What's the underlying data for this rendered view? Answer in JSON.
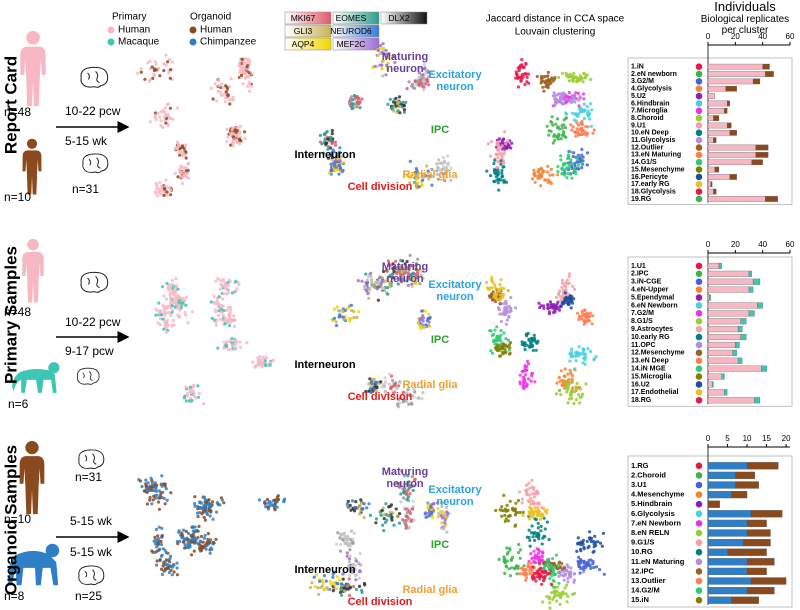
{
  "row_titles": [
    "Report Card",
    "Primary Samples",
    "Organoid Samples"
  ],
  "legend": {
    "primary": "Primary",
    "organoid": "Organoid"
  },
  "genes": [
    "MKI67",
    "EOMES",
    "DLX2",
    "GLI3",
    "NEUROD6",
    "AQP4",
    "MEF2C"
  ],
  "clustering_header": [
    "Jaccard distance in CCA space",
    "Louvain clustering"
  ],
  "sample_labels": [
    [
      "n=48",
      "10-22 pcw",
      "5-15 wk",
      "n=10",
      "n=31"
    ],
    [
      "n=48",
      "10-22 pcw",
      "9-17 pcw",
      "n=6"
    ],
    [
      "n=31",
      "n=10",
      "5-15 wk",
      "5-15 wk",
      "n=8",
      "n=25"
    ]
  ],
  "cell_types": [
    [
      "Maturing neuron",
      "Excitatory neuron",
      "IPC",
      "Interneuron",
      "Radial glia",
      "Cell division"
    ],
    [
      "Maturing neuron",
      "Excitatory neuron",
      "IPC",
      "Interneuron",
      "Radial glia",
      "Cell division"
    ],
    [
      "Maturing neuron",
      "Excitatory neuron",
      "IPC",
      "Interneuron",
      "Radial glia",
      "Cell division"
    ]
  ],
  "chart_data": [
    {
      "type": "bar",
      "title": "Individuals",
      "subtitle": "Biological replicates per cluster",
      "categories": [
        "1.iN",
        "2.eN newborn",
        "3.G2/M",
        "4.Glycolysis",
        "5.U2",
        "6.Hindbrain",
        "7.Microglia",
        "8.Choroid",
        "9.U1",
        "10.eN Deep",
        "11.Glycolysis",
        "12.Outlier",
        "13.eN Maturing",
        "14.G1/S",
        "15.Mesenchyme",
        "16.Pericyte",
        "17.early RG",
        "18.Glycolysis",
        "19.RG"
      ],
      "series": [
        {
          "color": "#f7b8c4",
          "values": [
            40,
            42,
            33,
            13,
            5,
            14,
            12,
            4,
            14,
            16,
            4,
            35,
            35,
            32,
            5,
            16,
            2,
            4,
            42
          ]
        },
        {
          "color": "#8b4a1e",
          "values": [
            5,
            6,
            5,
            8,
            0,
            2,
            2,
            4,
            3,
            5,
            2,
            9,
            9,
            8,
            3,
            5,
            1,
            2,
            9
          ]
        }
      ],
      "xlim": [
        0,
        60
      ],
      "xticks": [
        0,
        20,
        40,
        60
      ]
    },
    {
      "type": "bar",
      "categories": [
        "1.U1",
        "2.IPC",
        "3.iN-CGE",
        "4.eN-Upper",
        "5.Ependymal",
        "6.eN Newborn",
        "7.G2/M",
        "8.G1/S",
        "9.Astrocytes",
        "10.early RG",
        "11.OPC",
        "12.Mesenchyme",
        "13.eN Deep",
        "14.iN MGE",
        "15.Microglia",
        "16.U2",
        "17.Endothelial",
        "18.RG"
      ],
      "series": [
        {
          "name": "Human",
          "color": "#f7b8c4",
          "values": [
            8,
            30,
            33,
            30,
            1,
            36,
            30,
            24,
            22,
            24,
            20,
            18,
            22,
            39,
            10,
            3,
            12,
            34
          ]
        },
        {
          "name": "Macaque",
          "color": "#3cc6b4",
          "values": [
            2,
            2,
            5,
            3,
            1,
            4,
            4,
            4,
            3,
            4,
            3,
            3,
            3,
            4,
            2,
            1,
            2,
            4
          ]
        }
      ],
      "xlim": [
        0,
        60
      ],
      "xticks": [
        0,
        20,
        40,
        60
      ]
    },
    {
      "type": "bar",
      "categories": [
        "1.RG",
        "2.Choroid",
        "3.U1",
        "4.Mesenchyme",
        "5.Hindbrain",
        "6.Glycolysis",
        "7.eN Newborn",
        "8.eN RELN",
        "9.G1/S",
        "10.RG",
        "11.eN Maturing",
        "12.IPC",
        "13.Outlier",
        "14.G2/M",
        "15.iN"
      ],
      "series": [
        {
          "name": "Chimpanzee",
          "color": "#2f7fc6",
          "values": [
            10,
            7,
            7,
            6,
            0,
            11,
            10,
            10,
            9,
            5,
            10,
            10,
            11,
            10,
            6
          ]
        },
        {
          "name": "Human",
          "color": "#8b4a1e",
          "values": [
            8,
            5,
            6,
            4,
            3,
            8,
            5,
            6,
            7,
            10,
            7,
            5,
            9,
            7,
            7
          ]
        }
      ],
      "xlim": [
        0,
        21
      ],
      "xticks": [
        0,
        5,
        10,
        15,
        20
      ]
    }
  ]
}
